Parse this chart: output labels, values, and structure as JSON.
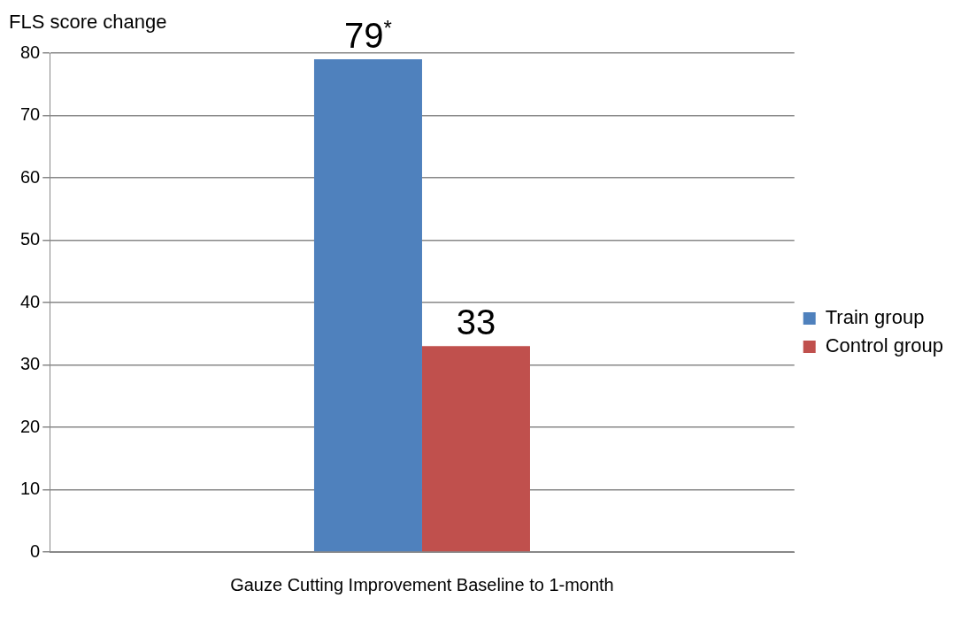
{
  "chart_data": {
    "type": "bar",
    "ylabel": "FLS score change",
    "categories": [
      "Gauze Cutting Improvement Baseline to 1-month"
    ],
    "series": [
      {
        "name": "Train group",
        "color": "#4f81bd",
        "values": [
          79
        ],
        "value_labels": [
          "79$^{*}$"
        ]
      },
      {
        "name": "Control group",
        "color": "#c0504d",
        "values": [
          33
        ],
        "value_labels": [
          "33"
        ]
      }
    ],
    "ylim": [
      0,
      80
    ],
    "yticks": [
      0,
      10,
      20,
      30,
      40,
      50,
      60,
      70,
      80
    ],
    "grid": "y",
    "legend": "right"
  }
}
